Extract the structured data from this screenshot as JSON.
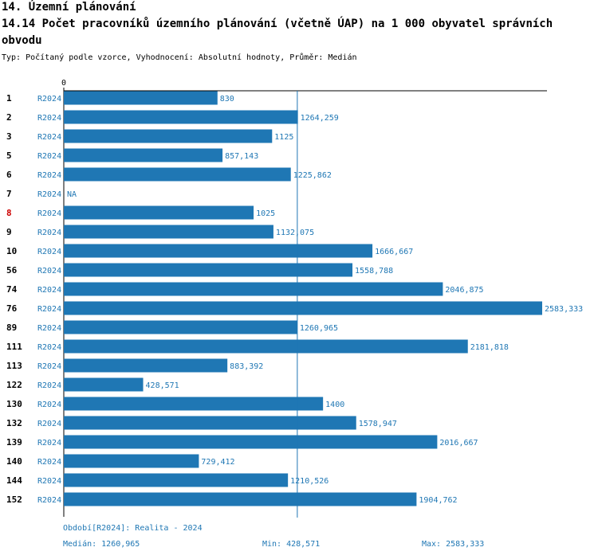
{
  "header": {
    "section_title": "14. Územní plánování",
    "indicator_title": "14.14 Počet pracovníků územního plánování (včetně ÚAP) na 1 000 obyvatel správních obvodu",
    "type_line": "Typ: Počítaný podle vzorce, Vyhodnocení: Absolutní hodnoty, Průměr: Medián"
  },
  "colors": {
    "bar": "#1f77b4",
    "label": "#1f77b4",
    "highlight_row": "#cc0000",
    "axis": "#000000"
  },
  "chart_data": {
    "type": "bar",
    "orientation": "horizontal",
    "axis_tick_label": "0",
    "xlim": [
      0,
      2583.333
    ],
    "median": 1260.965,
    "highlight_category": "8",
    "rows": [
      {
        "id": "1",
        "period": "R2024",
        "value": 830,
        "label": "830"
      },
      {
        "id": "2",
        "period": "R2024",
        "value": 1264.259,
        "label": "1264,259"
      },
      {
        "id": "3",
        "period": "R2024",
        "value": 1125,
        "label": "1125"
      },
      {
        "id": "5",
        "period": "R2024",
        "value": 857.143,
        "label": "857,143"
      },
      {
        "id": "6",
        "period": "R2024",
        "value": 1225.862,
        "label": "1225,862"
      },
      {
        "id": "7",
        "period": "R2024",
        "value": null,
        "label": "NA"
      },
      {
        "id": "8",
        "period": "R2024",
        "value": 1025,
        "label": "1025"
      },
      {
        "id": "9",
        "period": "R2024",
        "value": 1132.075,
        "label": "1132,075"
      },
      {
        "id": "10",
        "period": "R2024",
        "value": 1666.667,
        "label": "1666,667"
      },
      {
        "id": "56",
        "period": "R2024",
        "value": 1558.788,
        "label": "1558,788"
      },
      {
        "id": "74",
        "period": "R2024",
        "value": 2046.875,
        "label": "2046,875"
      },
      {
        "id": "76",
        "period": "R2024",
        "value": 2583.333,
        "label": "2583,333"
      },
      {
        "id": "89",
        "period": "R2024",
        "value": 1260.965,
        "label": "1260,965"
      },
      {
        "id": "111",
        "period": "R2024",
        "value": 2181.818,
        "label": "2181,818"
      },
      {
        "id": "113",
        "period": "R2024",
        "value": 883.392,
        "label": "883,392"
      },
      {
        "id": "122",
        "period": "R2024",
        "value": 428.571,
        "label": "428,571"
      },
      {
        "id": "130",
        "period": "R2024",
        "value": 1400,
        "label": "1400"
      },
      {
        "id": "132",
        "period": "R2024",
        "value": 1578.947,
        "label": "1578,947"
      },
      {
        "id": "139",
        "period": "R2024",
        "value": 2016.667,
        "label": "2016,667"
      },
      {
        "id": "140",
        "period": "R2024",
        "value": 729.412,
        "label": "729,412"
      },
      {
        "id": "144",
        "period": "R2024",
        "value": 1210.526,
        "label": "1210,526"
      },
      {
        "id": "152",
        "period": "R2024",
        "value": 1904.762,
        "label": "1904,762"
      }
    ]
  },
  "footer": {
    "period_note": "Období[R2024]: Realita - 2024",
    "median_text": "Medián: 1260,965",
    "min_text": "Min: 428,571",
    "max_text": "Max: 2583,333"
  }
}
